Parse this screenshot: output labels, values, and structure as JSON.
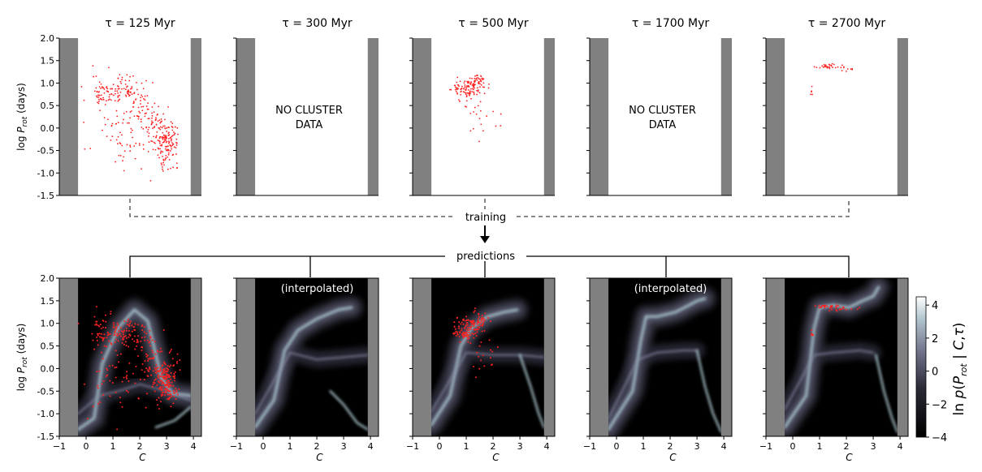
{
  "flow": {
    "training_label": "training",
    "predictions_label": "predictions",
    "no_data_label_line1": "NO CLUSTER",
    "no_data_label_line2": "DATA",
    "interpolated_label": "(interpolated)"
  },
  "colors": {
    "points": "#ff2020",
    "mask": "#808080",
    "background": "#ffffff",
    "heatmap_low": "#000000",
    "heatmap_high": "#ffffff"
  },
  "chart_data": [
    {
      "type": "scatter",
      "row": "observed clusters",
      "xlim": [
        -1,
        4.3
      ],
      "ylim": [
        -1.5,
        2.0
      ],
      "ylabel": "log P_rot (days)",
      "yticks": [
        "-1.5",
        "-1.0",
        "-0.5",
        "0.0",
        "0.5",
        "1.0",
        "1.5",
        "2.0"
      ],
      "panels": [
        {
          "title": "τ = 125 Myr",
          "has_data": true,
          "cluster": [
            {
              "x": 0.5,
              "y": 0.8,
              "sx": 0.12,
              "sy": 0.2,
              "n": 30
            },
            {
              "x": 1.0,
              "y": 0.85,
              "sx": 0.3,
              "sy": 0.15,
              "n": 40
            },
            {
              "x": 1.5,
              "y": 0.85,
              "sx": 0.3,
              "sy": 0.15,
              "n": 35
            },
            {
              "x": 2.0,
              "y": 0.55,
              "sx": 0.25,
              "sy": 0.25,
              "n": 30
            },
            {
              "x": 2.5,
              "y": 0.1,
              "sx": 0.2,
              "sy": 0.25,
              "n": 40
            },
            {
              "x": 3.0,
              "y": -0.3,
              "sx": 0.22,
              "sy": 0.25,
              "n": 150
            },
            {
              "x": 1.5,
              "y": -0.1,
              "sx": 0.9,
              "sy": 0.45,
              "n": 90
            }
          ]
        },
        {
          "title": "τ = 300 Myr",
          "has_data": false,
          "cluster": []
        },
        {
          "title": "τ = 500 Myr",
          "has_data": true,
          "cluster": [
            {
              "x": 1.0,
              "y": 0.85,
              "sx": 0.25,
              "sy": 0.12,
              "n": 90
            },
            {
              "x": 1.4,
              "y": 1.05,
              "sx": 0.2,
              "sy": 0.1,
              "n": 50
            },
            {
              "x": 1.6,
              "y": 0.3,
              "sx": 0.3,
              "sy": 0.3,
              "n": 20
            }
          ]
        },
        {
          "title": "τ = 1700 Myr",
          "has_data": false,
          "cluster": []
        },
        {
          "title": "τ = 2700 Myr",
          "has_data": true,
          "cluster": [
            {
              "x": 1.3,
              "y": 1.37,
              "sx": 0.2,
              "sy": 0.03,
              "n": 25
            },
            {
              "x": 1.9,
              "y": 1.33,
              "sx": 0.25,
              "sy": 0.03,
              "n": 12
            },
            {
              "x": 0.7,
              "y": 0.8,
              "sx": 0.03,
              "sy": 0.06,
              "n": 5
            }
          ]
        }
      ],
      "masked_x": [
        [
          -1,
          -0.3
        ],
        [
          3.9,
          4.3
        ]
      ]
    },
    {
      "type": "heatmap",
      "row": "predictions",
      "xlim": [
        -1,
        4.3
      ],
      "ylim": [
        -1.5,
        2.0
      ],
      "xlabel": "C",
      "ylabel": "log P_rot (days)",
      "xticks": [
        "-1",
        "0",
        "1",
        "2",
        "3",
        "4"
      ],
      "yticks": [
        "-1.5",
        "-1.0",
        "-0.5",
        "0.0",
        "0.5",
        "1.0",
        "1.5",
        "2.0"
      ],
      "colorbar_label": "ln p(P_rot | C,τ)",
      "colorbar_range": [
        -4,
        4.5
      ],
      "colorbar_ticks": [
        "4",
        "2",
        "0",
        "−2",
        "−4"
      ],
      "panels": [
        {
          "overlay": true,
          "interpolated": false
        },
        {
          "overlay": false,
          "interpolated": true
        },
        {
          "overlay": true,
          "interpolated": false
        },
        {
          "overlay": false,
          "interpolated": true
        },
        {
          "overlay": true,
          "interpolated": false
        }
      ],
      "masked_x": [
        [
          -1,
          -0.3
        ],
        [
          3.9,
          4.3
        ]
      ]
    }
  ]
}
